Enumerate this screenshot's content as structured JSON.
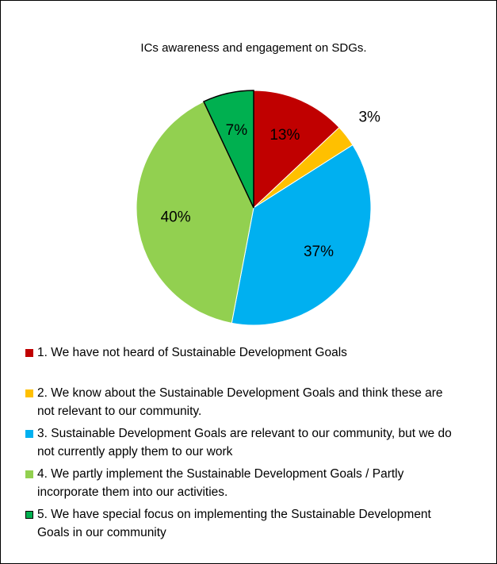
{
  "chart_data": {
    "type": "pie",
    "title": "ICs awareness and engagement on SDGs.",
    "categories": [
      "1. We have not heard of Sustainable Development Goals",
      "2. We know about the Sustainable Development Goals and think these are not relevant to our community.",
      "3. Sustainable Development Goals are relevant to our community, but we do not currently apply them to our work",
      "4. We partly implement the Sustainable Development Goals / Partly incorporate them into our activities.",
      "5. We have special focus on implementing the Sustainable Development Goals in our community"
    ],
    "values": [
      13,
      3,
      37,
      40,
      7
    ],
    "value_labels": [
      "13%",
      "3%",
      "37%",
      "40%",
      "7%"
    ],
    "colors": [
      "#c00000",
      "#ffc000",
      "#00b0f0",
      "#92d050",
      "#00b050"
    ],
    "legend": "bottom"
  }
}
